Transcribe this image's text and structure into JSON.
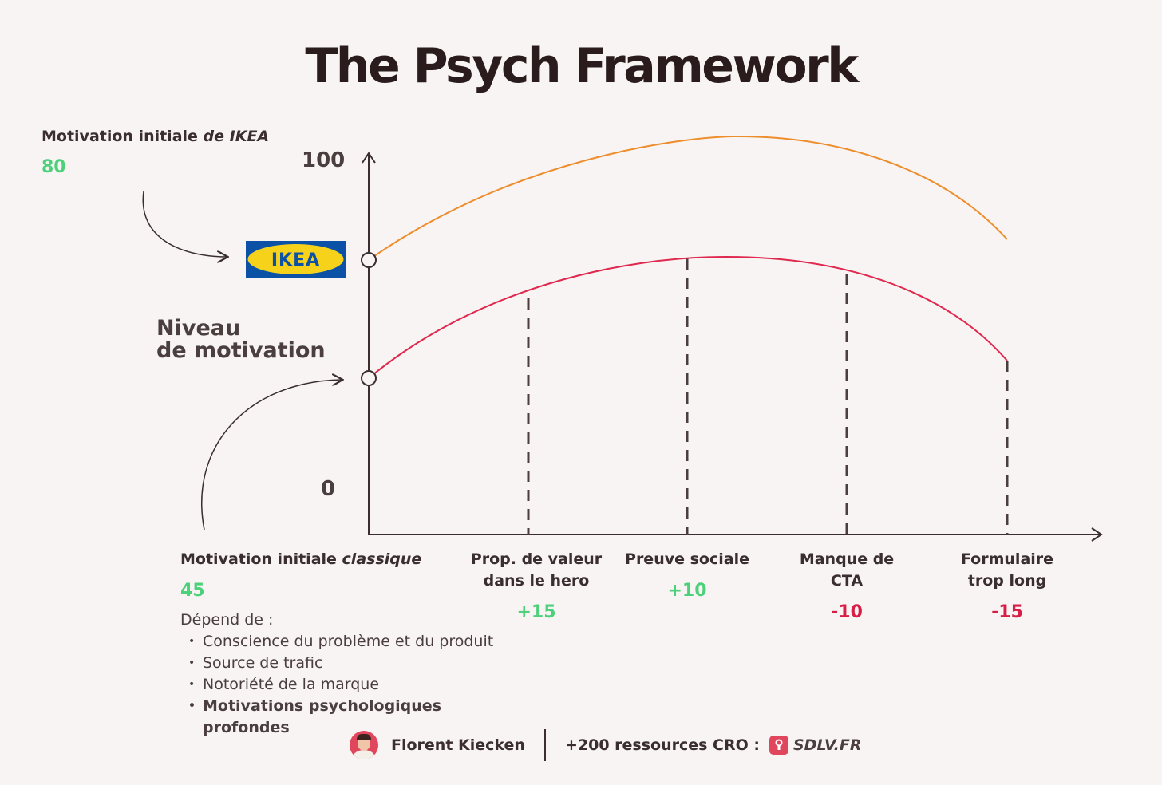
{
  "title": "The Psych Framework",
  "ikea": {
    "label_prefix": "Motivation initiale ",
    "label_italic": "de IKEA",
    "value": "80",
    "logo_text": "IKEA"
  },
  "axis": {
    "y_label_line1": "Niveau",
    "y_label_line2": "de motivation",
    "y_top_tick": "100",
    "y_bottom_tick": "0"
  },
  "classic": {
    "label_prefix": "Motivation initiale ",
    "label_italic": "classique",
    "value": "45",
    "depends_title": "Dépend de :",
    "factors": [
      "Conscience du problème et du produit",
      "Source de trafic",
      "Notoriété de la marque",
      "Motivations psychologiques profondes"
    ]
  },
  "steps": [
    {
      "line1": "Prop. de valeur",
      "line2": "dans le hero",
      "value": "+15",
      "sign": "positive"
    },
    {
      "line1": "Preuve sociale",
      "line2": "",
      "value": "+10",
      "sign": "positive"
    },
    {
      "line1": "Manque de",
      "line2": "CTA",
      "value": "-10",
      "sign": "negative"
    },
    {
      "line1": "Formulaire",
      "line2": "trop long",
      "value": "-15",
      "sign": "negative"
    }
  ],
  "footer": {
    "author": "Florent Kiecken",
    "resources": "+200 ressources CRO :",
    "link": "SDLV.FR"
  },
  "colors": {
    "ikea_curve": "#ee8d2b",
    "classic_curve": "#e0284f",
    "positive": "#4dd07a",
    "negative": "#d81e46",
    "ikea_blue": "#0b51a6",
    "ikea_yellow": "#f7d21a"
  }
}
